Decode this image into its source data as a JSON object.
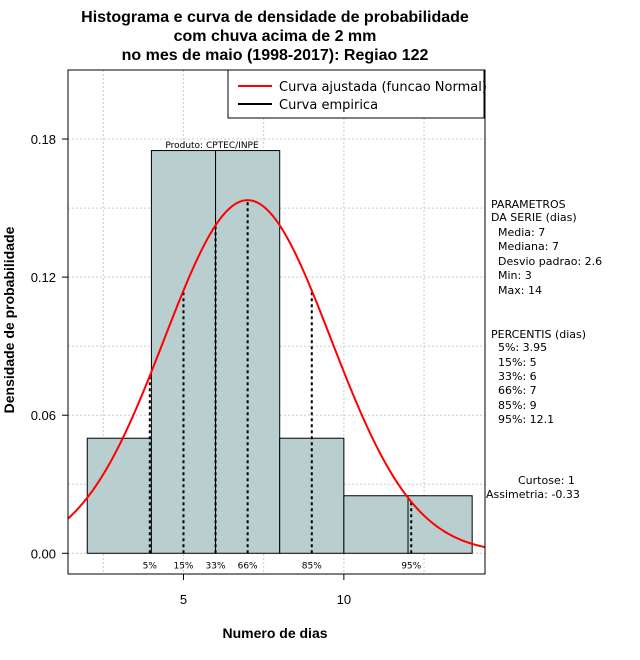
{
  "chart_data": {
    "type": "bar",
    "title_lines": [
      "Histograma e curva de densidade de probabilidade",
      "com chuva acima de 2 mm",
      "no mes de maio (1998-2017): Regiao 122"
    ],
    "xlabel": "Numero de dias",
    "ylabel": "Densidade de probabilidade",
    "xlim": [
      1.4,
      14.4
    ],
    "ylim": [
      -0.009,
      0.21
    ],
    "x_ticks": [
      5,
      10
    ],
    "y_ticks": [
      0.0,
      0.06,
      0.12,
      0.18
    ],
    "y_tick_labels": [
      "0.00",
      "0.06",
      "0.12",
      "0.18"
    ],
    "grid": true,
    "bins": [
      {
        "start": 2,
        "end": 4,
        "density": 0.05
      },
      {
        "start": 4,
        "end": 6,
        "density": 0.175
      },
      {
        "start": 6,
        "end": 8,
        "density": 0.175
      },
      {
        "start": 8,
        "end": 10,
        "density": 0.05
      },
      {
        "start": 10,
        "end": 12,
        "density": 0.025
      },
      {
        "start": 12,
        "end": 14,
        "density": 0.025
      }
    ],
    "series": [
      {
        "name": "Curva ajustada (funcao Normal)",
        "color": "#ff0000",
        "distribution": "normal",
        "mean": 7,
        "sd": 2.6
      },
      {
        "name": "Curva empirica",
        "color": "#000000"
      }
    ],
    "percentiles": [
      {
        "label": "5%",
        "value": 3.95
      },
      {
        "label": "15%",
        "value": 5
      },
      {
        "label": "33%",
        "value": 6
      },
      {
        "label": "66%",
        "value": 7
      },
      {
        "label": "85%",
        "value": 9
      },
      {
        "label": "95%",
        "value": 12.1
      }
    ],
    "product_label": "Produto: CPTEC/INPE",
    "legend_position": "top-right",
    "bar_color": "#b8cecf"
  },
  "parametros": {
    "header1": "PARAMETROS",
    "header2": "DA SERIE (dias)",
    "media": "Media: 7",
    "mediana": "Mediana: 7",
    "desvio": "Desvio padrao: 2.6",
    "min": "Min: 3",
    "max": "Max: 14"
  },
  "percentis_block": {
    "header": "PERCENTIS (dias)",
    "lines": [
      "5%: 3.95",
      "15%: 5",
      "33%: 6",
      "66%: 7",
      "85%: 9",
      "95%: 12.1"
    ]
  },
  "stats": {
    "curtose": "Curtose: 1",
    "assimetria": "Assimetria: -0.33"
  }
}
